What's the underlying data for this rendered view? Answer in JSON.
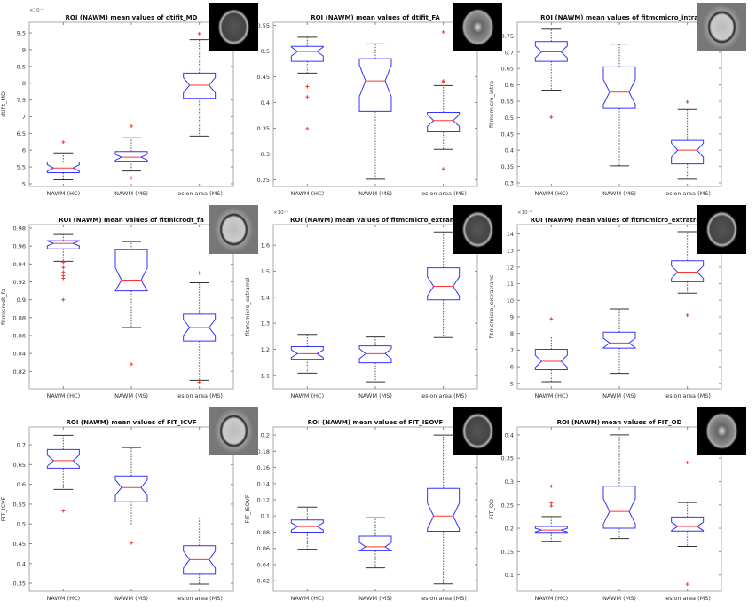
{
  "categories": [
    "NAWM (HC)",
    "NAWM (MS)",
    "lesion area (MS)"
  ],
  "colors": {
    "box": "#3333ff",
    "median": "#ff3333",
    "outlier": "#ff3333",
    "whisker": "#333333"
  },
  "chart_data": [
    {
      "type": "box",
      "title": "ROI (NAWM) mean values of dtifit_MD",
      "ylabel": "dtifit_MD",
      "exponent": "×10⁻⁴",
      "ylim": [
        4.92,
        9.82
      ],
      "yticks": [
        5,
        5.5,
        6,
        6.5,
        7,
        7.5,
        8,
        8.5,
        9,
        9.5
      ],
      "thumbnail": "brain-md",
      "boxes": [
        {
          "whisker_low": 5.12,
          "q1": 5.33,
          "median": 5.47,
          "q3": 5.65,
          "whisker_high": 5.92,
          "outliers": [
            6.24
          ]
        },
        {
          "whisker_low": 5.38,
          "q1": 5.67,
          "median": 5.79,
          "q3": 5.96,
          "whisker_high": 6.37,
          "outliers": [
            6.72,
            5.17
          ]
        },
        {
          "whisker_low": 6.42,
          "q1": 7.55,
          "median": 7.94,
          "q3": 8.3,
          "whisker_high": 9.3,
          "outliers": [
            9.48
          ]
        }
      ]
    },
    {
      "type": "box",
      "title": "ROI (NAWM) mean values of dtifit_FA",
      "ylabel": "",
      "exponent": "",
      "ylim": [
        0.237,
        0.556
      ],
      "yticks": [
        0.25,
        0.3,
        0.35,
        0.4,
        0.45,
        0.5,
        0.55
      ],
      "thumbnail": "brain-fa",
      "boxes": [
        {
          "whisker_low": 0.457,
          "q1": 0.48,
          "median": 0.499,
          "q3": 0.509,
          "whisker_high": 0.527,
          "outliers": [
            0.431,
            0.411,
            0.349
          ]
        },
        {
          "whisker_low": 0.251,
          "q1": 0.383,
          "median": 0.442,
          "q3": 0.485,
          "whisker_high": 0.514,
          "outliers": []
        },
        {
          "whisker_low": 0.309,
          "q1": 0.343,
          "median": 0.365,
          "q3": 0.381,
          "whisker_high": 0.433,
          "outliers": [
            0.537,
            0.442,
            0.44,
            0.271
          ]
        }
      ]
    },
    {
      "type": "box",
      "title": "ROI (NAWM) mean values of fitmcmicro_intra",
      "ylabel": "fitmcmicro_intra",
      "exponent": "",
      "ylim": [
        0.289,
        0.792
      ],
      "yticks": [
        0.3,
        0.35,
        0.4,
        0.45,
        0.5,
        0.55,
        0.6,
        0.65,
        0.7,
        0.75
      ],
      "thumbnail": "brain-t1",
      "boxes": [
        {
          "whisker_low": 0.584,
          "q1": 0.672,
          "median": 0.701,
          "q3": 0.733,
          "whisker_high": 0.771,
          "outliers": [
            0.501
          ]
        },
        {
          "whisker_low": 0.352,
          "q1": 0.528,
          "median": 0.578,
          "q3": 0.655,
          "whisker_high": 0.725,
          "outliers": []
        },
        {
          "whisker_low": 0.311,
          "q1": 0.358,
          "median": 0.4,
          "q3": 0.43,
          "whisker_high": 0.525,
          "outliers": [
            0.548
          ]
        }
      ]
    },
    {
      "type": "box",
      "title": "ROI (NAWM) mean values of fitmicrodt_fa",
      "ylabel": "fitmicrodt_fa",
      "exponent": "",
      "ylim": [
        0.8005,
        0.984
      ],
      "yticks": [
        0.82,
        0.84,
        0.86,
        0.88,
        0.9,
        0.92,
        0.94,
        0.96,
        0.98
      ],
      "thumbnail": "brain-t1",
      "boxes": [
        {
          "whisker_low": 0.943,
          "q1": 0.957,
          "median": 0.963,
          "q3": 0.966,
          "whisker_high": 0.973,
          "outliers": [
            0.942,
            0.936,
            0.931,
            0.927,
            0.924,
            0.9
          ]
        },
        {
          "whisker_low": 0.869,
          "q1": 0.91,
          "median": 0.922,
          "q3": 0.956,
          "whisker_high": 0.965,
          "outliers": [
            0.828
          ]
        },
        {
          "whisker_low": 0.81,
          "q1": 0.854,
          "median": 0.869,
          "q3": 0.884,
          "whisker_high": 0.919,
          "outliers": [
            0.93,
            0.808
          ]
        }
      ]
    },
    {
      "type": "box",
      "title": "ROI (NAWM) mean values of fitmcmicro_extramd",
      "ylabel": "fitmcmicro_extramd",
      "exponent": "×10⁻³",
      "ylim": [
        1.048,
        1.679
      ],
      "yticks": [
        1.1,
        1.2,
        1.3,
        1.4,
        1.5,
        1.6
      ],
      "thumbnail": "brain-md",
      "boxes": [
        {
          "whisker_low": 1.108,
          "q1": 1.162,
          "median": 1.183,
          "q3": 1.21,
          "whisker_high": 1.257,
          "outliers": []
        },
        {
          "whisker_low": 1.075,
          "q1": 1.148,
          "median": 1.183,
          "q3": 1.213,
          "whisker_high": 1.247,
          "outliers": []
        },
        {
          "whisker_low": 1.245,
          "q1": 1.39,
          "median": 1.442,
          "q3": 1.513,
          "whisker_high": 1.651,
          "outliers": []
        }
      ]
    },
    {
      "type": "box",
      "title": "ROI (NAWM) mean values of fitmcmicro_extratrans",
      "ylabel": "fitmcmicro_extratrans",
      "exponent": "×10⁻⁴",
      "ylim": [
        4.67,
        14.56
      ],
      "yticks": [
        5,
        6,
        7,
        8,
        9,
        10,
        11,
        12,
        13,
        14
      ],
      "thumbnail": "brain-md",
      "boxes": [
        {
          "whisker_low": 5.1,
          "q1": 5.82,
          "median": 6.33,
          "q3": 7.05,
          "whisker_high": 7.85,
          "outliers": [
            8.88
          ]
        },
        {
          "whisker_low": 5.6,
          "q1": 7.12,
          "median": 7.43,
          "q3": 8.08,
          "whisker_high": 9.48,
          "outliers": []
        },
        {
          "whisker_low": 10.43,
          "q1": 11.12,
          "median": 11.7,
          "q3": 12.38,
          "whisker_high": 14.13,
          "outliers": [
            9.1
          ]
        }
      ]
    },
    {
      "type": "box",
      "title": "ROI (NAWM) mean values of FIT_ICVF",
      "ylabel": "FIT_ICVF",
      "exponent": "",
      "ylim": [
        0.33,
        0.745
      ],
      "yticks": [
        0.35,
        0.4,
        0.45,
        0.5,
        0.55,
        0.6,
        0.65,
        0.7
      ],
      "thumbnail": "brain-t1",
      "boxes": [
        {
          "whisker_low": 0.587,
          "q1": 0.641,
          "median": 0.66,
          "q3": 0.688,
          "whisker_high": 0.724,
          "outliers": [
            0.533
          ]
        },
        {
          "whisker_low": 0.495,
          "q1": 0.556,
          "median": 0.592,
          "q3": 0.621,
          "whisker_high": 0.693,
          "outliers": [
            0.452
          ]
        },
        {
          "whisker_low": 0.348,
          "q1": 0.373,
          "median": 0.41,
          "q3": 0.445,
          "whisker_high": 0.515,
          "outliers": []
        }
      ]
    },
    {
      "type": "box",
      "title": "ROI (NAWM) mean values of FIT_ISOVF",
      "ylabel": "FIT_ISOVF",
      "exponent": "",
      "ylim": [
        0.007,
        0.21
      ],
      "yticks": [
        0.02,
        0.04,
        0.06,
        0.08,
        0.1,
        0.12,
        0.14,
        0.16,
        0.18,
        0.2
      ],
      "thumbnail": "brain-md",
      "boxes": [
        {
          "whisker_low": 0.059,
          "q1": 0.08,
          "median": 0.087,
          "q3": 0.095,
          "whisker_high": 0.111,
          "outliers": []
        },
        {
          "whisker_low": 0.036,
          "q1": 0.057,
          "median": 0.062,
          "q3": 0.075,
          "whisker_high": 0.098,
          "outliers": []
        },
        {
          "whisker_low": 0.016,
          "q1": 0.081,
          "median": 0.1,
          "q3": 0.134,
          "whisker_high": 0.2,
          "outliers": []
        }
      ]
    },
    {
      "type": "box",
      "title": "ROI (NAWM) mean values of FIT_OD",
      "ylabel": "FIT_OD",
      "exponent": "",
      "ylim": [
        0.065,
        0.417
      ],
      "yticks": [
        0.1,
        0.15,
        0.2,
        0.25,
        0.3,
        0.35,
        0.4
      ],
      "thumbnail": "brain-fa",
      "boxes": [
        {
          "whisker_low": 0.172,
          "q1": 0.191,
          "median": 0.196,
          "q3": 0.204,
          "whisker_high": 0.225,
          "outliers": [
            0.29,
            0.254,
            0.248
          ]
        },
        {
          "whisker_low": 0.178,
          "q1": 0.2,
          "median": 0.236,
          "q3": 0.29,
          "whisker_high": 0.4,
          "outliers": []
        },
        {
          "whisker_low": 0.161,
          "q1": 0.194,
          "median": 0.204,
          "q3": 0.224,
          "whisker_high": 0.255,
          "outliers": [
            0.341,
            0.08
          ]
        }
      ]
    }
  ]
}
